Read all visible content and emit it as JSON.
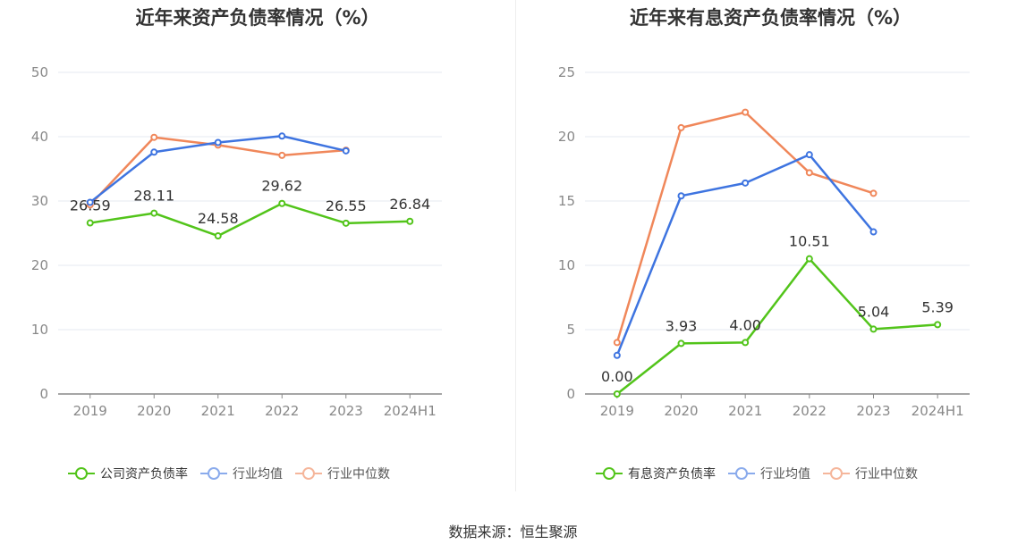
{
  "colors": {
    "company": "#52c41a",
    "avg": "#3e74e0",
    "median": "#f0875a",
    "grid": "#e6e9f0",
    "axis": "#888888",
    "label": "#333333"
  },
  "chart_data": [
    {
      "type": "line",
      "title": "近年来资产负债率情况（%）",
      "categories": [
        "2019",
        "2020",
        "2021",
        "2022",
        "2023",
        "2024H1"
      ],
      "ylim": [
        0,
        50
      ],
      "yticks": [
        0,
        10,
        20,
        30,
        40,
        50
      ],
      "series": [
        {
          "name": "公司资产负债率",
          "key": "company",
          "values": [
            26.59,
            28.11,
            24.58,
            29.62,
            26.55,
            26.84
          ],
          "labels": [
            "26.59",
            "28.11",
            "24.58",
            "29.62",
            "26.55",
            "26.84"
          ]
        },
        {
          "name": "行业均值",
          "key": "avg",
          "values": [
            29.8,
            37.6,
            39.1,
            40.1,
            37.8,
            null
          ]
        },
        {
          "name": "行业中位数",
          "key": "median",
          "values": [
            29.4,
            39.9,
            38.7,
            37.1,
            37.9,
            null
          ]
        }
      ]
    },
    {
      "type": "line",
      "title": "近年来有息资产负债率情况（%）",
      "categories": [
        "2019",
        "2020",
        "2021",
        "2022",
        "2023",
        "2024H1"
      ],
      "ylim": [
        0,
        25
      ],
      "yticks": [
        0,
        5,
        10,
        15,
        20,
        25
      ],
      "series": [
        {
          "name": "有息资产负债率",
          "key": "company",
          "values": [
            0.0,
            3.93,
            4.0,
            10.51,
            5.04,
            5.39
          ],
          "labels": [
            "0.00",
            "3.93",
            "4.00",
            "10.51",
            "5.04",
            "5.39"
          ]
        },
        {
          "name": "行业均值",
          "key": "avg",
          "values": [
            3.0,
            15.4,
            16.4,
            18.6,
            12.6,
            null
          ]
        },
        {
          "name": "行业中位数",
          "key": "median",
          "values": [
            4.0,
            20.7,
            21.9,
            17.2,
            15.6,
            null
          ]
        }
      ]
    }
  ],
  "source_label": "数据来源：恒生聚源"
}
